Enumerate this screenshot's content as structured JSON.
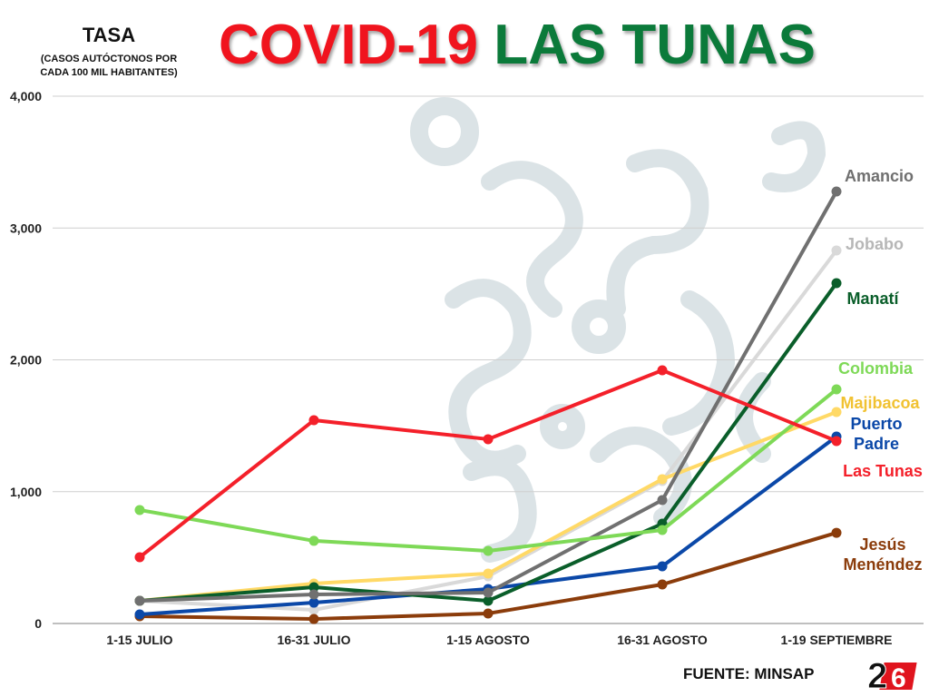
{
  "title": {
    "part1": "COVID-19",
    "part2": "LAS TUNAS"
  },
  "source": "FUENTE: MINSAP",
  "logo_text": "26",
  "colors": {
    "title_red": "#f0141e",
    "title_green": "#0b7a3a"
  },
  "chart_data": {
    "type": "line",
    "title": "COVID-19 LAS TUNAS",
    "ylabel": "TASA",
    "ylabel_sub": [
      "(CASOS AUTÓCTONOS POR",
      "CADA 100 MIL HABITANTES)"
    ],
    "xlabel": "",
    "categories": [
      "1-15 JULIO",
      "16-31 JULIO",
      "1-15 AGOSTO",
      "16-31 AGOSTO",
      "1-19 SEPTIEMBRE"
    ],
    "ylim": [
      0,
      4000
    ],
    "yticks": [
      0,
      1000,
      2000,
      3000,
      4000
    ],
    "ytick_labels": [
      "0",
      "1,000",
      "2,000",
      "3,000",
      "4,000"
    ],
    "grid": true,
    "legend": "direct labels at right end of lines",
    "series": [
      {
        "name": "Jobabo",
        "label_lines": [
          "Jobabo"
        ],
        "color": "#d9d9d9",
        "label_color": "#b7b7b7",
        "values": [
          172,
          103,
          358,
          1081,
          2830
        ]
      },
      {
        "name": "Majibacoa",
        "label_lines": [
          "Majibacoa"
        ],
        "color": "#ffd966",
        "label_color": "#f1c232",
        "values": [
          172,
          303,
          379,
          1095,
          1604
        ]
      },
      {
        "name": "Jesús Menéndez",
        "label_lines": [
          "Jesús",
          "Menéndez"
        ],
        "color": "#8b3c0b",
        "label_color": "#8b3c0b",
        "values": [
          55,
          34,
          76,
          296,
          688
        ]
      },
      {
        "name": "Puerto Padre",
        "label_lines": [
          "Puerto",
          "Padre"
        ],
        "color": "#0b48a8",
        "label_color": "#0b48a8",
        "values": [
          69,
          158,
          262,
          434,
          1418
        ]
      },
      {
        "name": "Manatí",
        "label_lines": [
          "Manatí"
        ],
        "color": "#0a5e2a",
        "label_color": "#0a5e2a",
        "values": [
          172,
          275,
          172,
          757,
          2582
        ]
      },
      {
        "name": "Amancio",
        "label_lines": [
          "Amancio"
        ],
        "color": "#707070",
        "label_color": "#707070",
        "values": [
          172,
          220,
          234,
          936,
          3277
        ]
      },
      {
        "name": "Colombia",
        "label_lines": [
          "Colombia"
        ],
        "color": "#7ed957",
        "label_color": "#7ed957",
        "values": [
          861,
          627,
          551,
          709,
          1776
        ]
      },
      {
        "name": "Las Tunas",
        "label_lines": [
          "Las Tunas"
        ],
        "color": "#f4202a",
        "label_color": "#f4202a",
        "values": [
          503,
          1542,
          1398,
          1921,
          1384
        ]
      }
    ]
  }
}
